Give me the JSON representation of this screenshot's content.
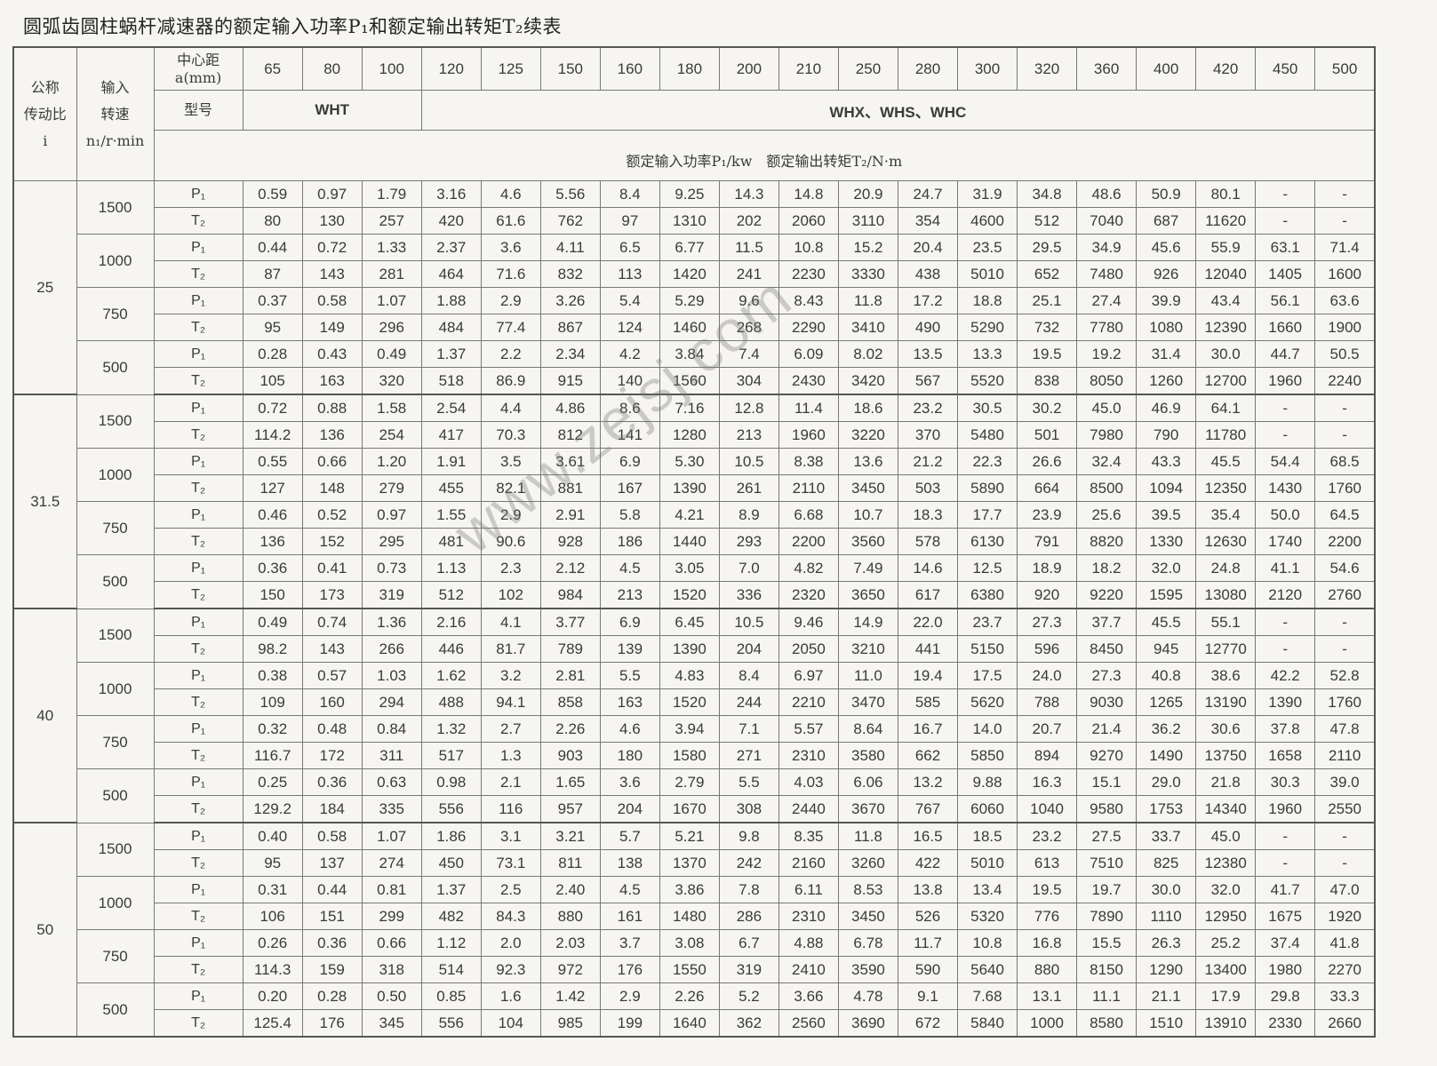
{
  "title": "圆弧齿圆柱蜗杆减速器的额定输入功率P₁和额定输出转矩T₂续表",
  "header": {
    "ratio_label": "公称传动比 i",
    "ratio_label_lines": [
      "公称",
      "传动比",
      "i"
    ],
    "speed_label_lines": [
      "输入",
      "转速",
      "n₁/r·min"
    ],
    "center_distance_label_lines": [
      "中心距",
      "a(mm)"
    ],
    "model_label": "型号",
    "model_wht": "WHT",
    "model_whx": "WHX、WHS、WHC",
    "unit_label": "额定输入功率P₁/kw　额定输出转矩T₂/N·m",
    "center_distances": [
      "65",
      "80",
      "100",
      "120",
      "125",
      "150",
      "160",
      "180",
      "200",
      "210",
      "250",
      "280",
      "300",
      "320",
      "360",
      "400",
      "420",
      "450",
      "500"
    ]
  },
  "watermark": "www.zejsj.com",
  "groups": [
    {
      "ratio": "25",
      "speeds": [
        {
          "speed": "1500",
          "P1": [
            "0.59",
            "0.97",
            "1.79",
            "3.16",
            "4.6",
            "5.56",
            "8.4",
            "9.25",
            "14.3",
            "14.8",
            "20.9",
            "24.7",
            "31.9",
            "34.8",
            "48.6",
            "50.9",
            "80.1",
            "-",
            "-"
          ],
          "T2": [
            "80",
            "130",
            "257",
            "420",
            "61.6",
            "762",
            "97",
            "1310",
            "202",
            "2060",
            "3110",
            "354",
            "4600",
            "512",
            "7040",
            "687",
            "11620",
            "-",
            "-"
          ]
        },
        {
          "speed": "1000",
          "P1": [
            "0.44",
            "0.72",
            "1.33",
            "2.37",
            "3.6",
            "4.11",
            "6.5",
            "6.77",
            "11.5",
            "10.8",
            "15.2",
            "20.4",
            "23.5",
            "29.5",
            "34.9",
            "45.6",
            "55.9",
            "63.1",
            "71.4"
          ],
          "T2": [
            "87",
            "143",
            "281",
            "464",
            "71.6",
            "832",
            "113",
            "1420",
            "241",
            "2230",
            "3330",
            "438",
            "5010",
            "652",
            "7480",
            "926",
            "12040",
            "1405",
            "1600"
          ]
        },
        {
          "speed": "750",
          "P1": [
            "0.37",
            "0.58",
            "1.07",
            "1.88",
            "2.9",
            "3.26",
            "5.4",
            "5.29",
            "9.6",
            "8.43",
            "11.8",
            "17.2",
            "18.8",
            "25.1",
            "27.4",
            "39.9",
            "43.4",
            "56.1",
            "63.6"
          ],
          "T2": [
            "95",
            "149",
            "296",
            "484",
            "77.4",
            "867",
            "124",
            "1460",
            "268",
            "2290",
            "3410",
            "490",
            "5290",
            "732",
            "7780",
            "1080",
            "12390",
            "1660",
            "1900"
          ]
        },
        {
          "speed": "500",
          "P1": [
            "0.28",
            "0.43",
            "0.49",
            "1.37",
            "2.2",
            "2.34",
            "4.2",
            "3.84",
            "7.4",
            "6.09",
            "8.02",
            "13.5",
            "13.3",
            "19.5",
            "19.2",
            "31.4",
            "30.0",
            "44.7",
            "50.5"
          ],
          "T2": [
            "105",
            "163",
            "320",
            "518",
            "86.9",
            "915",
            "140",
            "1560",
            "304",
            "2430",
            "3420",
            "567",
            "5520",
            "838",
            "8050",
            "1260",
            "12700",
            "1960",
            "2240"
          ]
        }
      ]
    },
    {
      "ratio": "31.5",
      "speeds": [
        {
          "speed": "1500",
          "P1": [
            "0.72",
            "0.88",
            "1.58",
            "2.54",
            "4.4",
            "4.86",
            "8.6",
            "7.16",
            "12.8",
            "11.4",
            "18.6",
            "23.2",
            "30.5",
            "30.2",
            "45.0",
            "46.9",
            "64.1",
            "-",
            "-"
          ],
          "T2": [
            "114.2",
            "136",
            "254",
            "417",
            "70.3",
            "812",
            "141",
            "1280",
            "213",
            "1960",
            "3220",
            "370",
            "5480",
            "501",
            "7980",
            "790",
            "11780",
            "-",
            "-"
          ]
        },
        {
          "speed": "1000",
          "P1": [
            "0.55",
            "0.66",
            "1.20",
            "1.91",
            "3.5",
            "3.61",
            "6.9",
            "5.30",
            "10.5",
            "8.38",
            "13.6",
            "21.2",
            "22.3",
            "26.6",
            "32.4",
            "43.3",
            "45.5",
            "54.4",
            "68.5"
          ],
          "T2": [
            "127",
            "148",
            "279",
            "455",
            "82.1",
            "881",
            "167",
            "1390",
            "261",
            "2110",
            "3450",
            "503",
            "5890",
            "664",
            "8500",
            "1094",
            "12350",
            "1430",
            "1760"
          ]
        },
        {
          "speed": "750",
          "P1": [
            "0.46",
            "0.52",
            "0.97",
            "1.55",
            "2.9",
            "2.91",
            "5.8",
            "4.21",
            "8.9",
            "6.68",
            "10.7",
            "18.3",
            "17.7",
            "23.9",
            "25.6",
            "39.5",
            "35.4",
            "50.0",
            "64.5"
          ],
          "T2": [
            "136",
            "152",
            "295",
            "481",
            "90.6",
            "928",
            "186",
            "1440",
            "293",
            "2200",
            "3560",
            "578",
            "6130",
            "791",
            "8820",
            "1330",
            "12630",
            "1740",
            "2200"
          ]
        },
        {
          "speed": "500",
          "P1": [
            "0.36",
            "0.41",
            "0.73",
            "1.13",
            "2.3",
            "2.12",
            "4.5",
            "3.05",
            "7.0",
            "4.82",
            "7.49",
            "14.6",
            "12.5",
            "18.9",
            "18.2",
            "32.0",
            "24.8",
            "41.1",
            "54.6"
          ],
          "T2": [
            "150",
            "173",
            "319",
            "512",
            "102",
            "984",
            "213",
            "1520",
            "336",
            "2320",
            "3650",
            "617",
            "6380",
            "920",
            "9220",
            "1595",
            "13080",
            "2120",
            "2760"
          ]
        }
      ]
    },
    {
      "ratio": "40",
      "speeds": [
        {
          "speed": "1500",
          "P1": [
            "0.49",
            "0.74",
            "1.36",
            "2.16",
            "4.1",
            "3.77",
            "6.9",
            "6.45",
            "10.5",
            "9.46",
            "14.9",
            "22.0",
            "23.7",
            "27.3",
            "37.7",
            "45.5",
            "55.1",
            "-",
            "-"
          ],
          "T2": [
            "98.2",
            "143",
            "266",
            "446",
            "81.7",
            "789",
            "139",
            "1390",
            "204",
            "2050",
            "3210",
            "441",
            "5150",
            "596",
            "8450",
            "945",
            "12770",
            "-",
            "-"
          ]
        },
        {
          "speed": "1000",
          "P1": [
            "0.38",
            "0.57",
            "1.03",
            "1.62",
            "3.2",
            "2.81",
            "5.5",
            "4.83",
            "8.4",
            "6.97",
            "11.0",
            "19.4",
            "17.5",
            "24.0",
            "27.3",
            "40.8",
            "38.6",
            "42.2",
            "52.8"
          ],
          "T2": [
            "109",
            "160",
            "294",
            "488",
            "94.1",
            "858",
            "163",
            "1520",
            "244",
            "2210",
            "3470",
            "585",
            "5620",
            "788",
            "9030",
            "1265",
            "13190",
            "1390",
            "1760"
          ]
        },
        {
          "speed": "750",
          "P1": [
            "0.32",
            "0.48",
            "0.84",
            "1.32",
            "2.7",
            "2.26",
            "4.6",
            "3.94",
            "7.1",
            "5.57",
            "8.64",
            "16.7",
            "14.0",
            "20.7",
            "21.4",
            "36.2",
            "30.6",
            "37.8",
            "47.8"
          ],
          "T2": [
            "116.7",
            "172",
            "311",
            "517",
            "1.3",
            "903",
            "180",
            "1580",
            "271",
            "2310",
            "3580",
            "662",
            "5850",
            "894",
            "9270",
            "1490",
            "13750",
            "1658",
            "2110"
          ]
        },
        {
          "speed": "500",
          "P1": [
            "0.25",
            "0.36",
            "0.63",
            "0.98",
            "2.1",
            "1.65",
            "3.6",
            "2.79",
            "5.5",
            "4.03",
            "6.06",
            "13.2",
            "9.88",
            "16.3",
            "15.1",
            "29.0",
            "21.8",
            "30.3",
            "39.0"
          ],
          "T2": [
            "129.2",
            "184",
            "335",
            "556",
            "116",
            "957",
            "204",
            "1670",
            "308",
            "2440",
            "3670",
            "767",
            "6060",
            "1040",
            "9580",
            "1753",
            "14340",
            "1960",
            "2550"
          ]
        }
      ]
    },
    {
      "ratio": "50",
      "speeds": [
        {
          "speed": "1500",
          "P1": [
            "0.40",
            "0.58",
            "1.07",
            "1.86",
            "3.1",
            "3.21",
            "5.7",
            "5.21",
            "9.8",
            "8.35",
            "11.8",
            "16.5",
            "18.5",
            "23.2",
            "27.5",
            "33.7",
            "45.0",
            "-",
            "-"
          ],
          "T2": [
            "95",
            "137",
            "274",
            "450",
            "73.1",
            "811",
            "138",
            "1370",
            "242",
            "2160",
            "3260",
            "422",
            "5010",
            "613",
            "7510",
            "825",
            "12380",
            "-",
            "-"
          ]
        },
        {
          "speed": "1000",
          "P1": [
            "0.31",
            "0.44",
            "0.81",
            "1.37",
            "2.5",
            "2.40",
            "4.5",
            "3.86",
            "7.8",
            "6.11",
            "8.53",
            "13.8",
            "13.4",
            "19.5",
            "19.7",
            "30.0",
            "32.0",
            "41.7",
            "47.0"
          ],
          "T2": [
            "106",
            "151",
            "299",
            "482",
            "84.3",
            "880",
            "161",
            "1480",
            "286",
            "2310",
            "3450",
            "526",
            "5320",
            "776",
            "7890",
            "1110",
            "12950",
            "1675",
            "1920"
          ]
        },
        {
          "speed": "750",
          "P1": [
            "0.26",
            "0.36",
            "0.66",
            "1.12",
            "2.0",
            "2.03",
            "3.7",
            "3.08",
            "6.7",
            "4.88",
            "6.78",
            "11.7",
            "10.8",
            "16.8",
            "15.5",
            "26.3",
            "25.2",
            "37.4",
            "41.8"
          ],
          "T2": [
            "114.3",
            "159",
            "318",
            "514",
            "92.3",
            "972",
            "176",
            "1550",
            "319",
            "2410",
            "3590",
            "590",
            "5640",
            "880",
            "8150",
            "1290",
            "13400",
            "1980",
            "2270"
          ]
        },
        {
          "speed": "500",
          "P1": [
            "0.20",
            "0.28",
            "0.50",
            "0.85",
            "1.6",
            "1.42",
            "2.9",
            "2.26",
            "5.2",
            "3.66",
            "4.78",
            "9.1",
            "7.68",
            "13.1",
            "11.1",
            "21.1",
            "17.9",
            "29.8",
            "33.3"
          ],
          "T2": [
            "125.4",
            "176",
            "345",
            "556",
            "104",
            "985",
            "199",
            "1640",
            "362",
            "2560",
            "3690",
            "672",
            "5840",
            "1000",
            "8580",
            "1510",
            "13910",
            "2330",
            "2660"
          ]
        }
      ]
    }
  ],
  "row_labels": {
    "P1": "P₁",
    "T2": "T₂"
  }
}
